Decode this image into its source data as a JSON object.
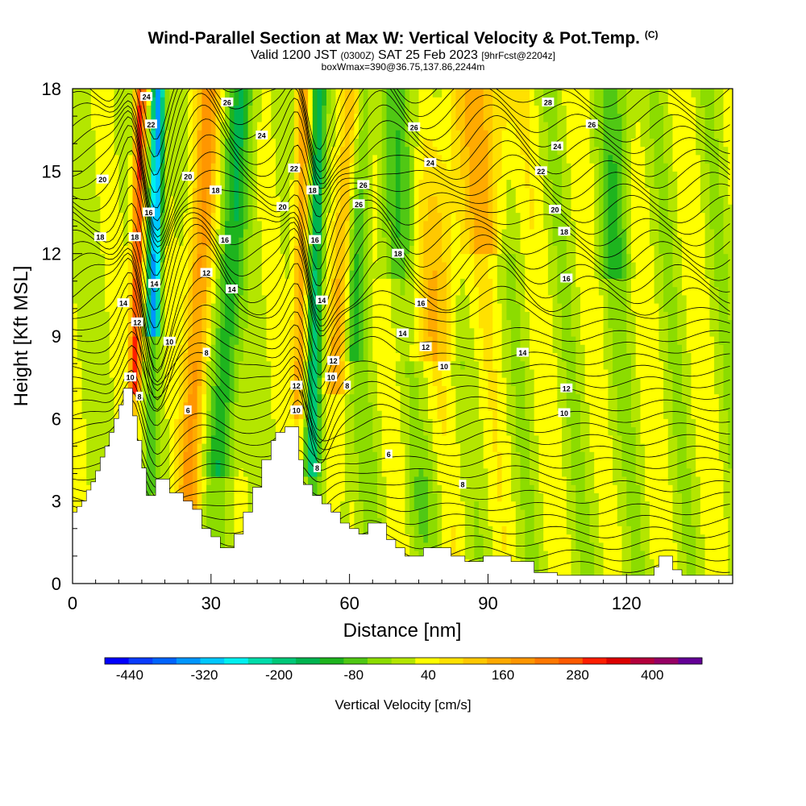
{
  "header": {
    "title": "Wind-Parallel Section at Max W: Vertical Velocity & Pot.Temp.",
    "copyright": "(C)",
    "valid_prefix": "Valid 1200 JST",
    "valid_zulu": "(0300Z)",
    "valid_date": "SAT 25 Feb 2023",
    "forecast_tag": "[9hrFcst@2204z]",
    "box_info": "boxWmax=390@36.75,137.86,2244m"
  },
  "chart_data": {
    "type": "heatmap",
    "xlabel": "Distance [nm]",
    "ylabel": "Height [Kft MSL]",
    "xlim": [
      0,
      143
    ],
    "ylim": [
      0,
      18
    ],
    "x_ticks": [
      0,
      30,
      60,
      90,
      120
    ],
    "y_ticks": [
      0,
      3,
      6,
      9,
      12,
      15,
      18
    ],
    "colorbar": {
      "label": "Vertical Velocity [cm/s]",
      "tick_labels": [
        "-440",
        "-320",
        "-200",
        "-80",
        "40",
        "160",
        "280",
        "400"
      ],
      "tick_values": [
        -440,
        -320,
        -200,
        -80,
        40,
        160,
        280,
        400
      ],
      "range": [
        -480,
        480
      ],
      "step": 40,
      "colors": [
        "#0000ff",
        "#0a3cff",
        "#0064ff",
        "#0096ff",
        "#00c8ff",
        "#00f0f0",
        "#00dcaa",
        "#00c878",
        "#00b450",
        "#1eb41e",
        "#50c814",
        "#8cdc00",
        "#b4e600",
        "#ffff00",
        "#ffe100",
        "#ffc800",
        "#ffaa00",
        "#ff9600",
        "#ff7800",
        "#ff5a00",
        "#ff1e00",
        "#dc0000",
        "#b4003c",
        "#960064",
        "#640096"
      ]
    },
    "terrain_profile": [
      [
        0,
        2.6
      ],
      [
        1,
        2.6
      ],
      [
        1,
        2.8
      ],
      [
        2,
        2.8
      ],
      [
        2,
        3
      ],
      [
        3,
        3
      ],
      [
        3,
        3.4
      ],
      [
        4,
        3.4
      ],
      [
        4,
        3.7
      ],
      [
        5,
        3.7
      ],
      [
        5,
        4.1
      ],
      [
        6,
        4.1
      ],
      [
        6,
        4.6
      ],
      [
        7,
        4.6
      ],
      [
        7,
        5
      ],
      [
        8,
        5
      ],
      [
        8,
        5.5
      ],
      [
        9,
        5.5
      ],
      [
        9,
        6
      ],
      [
        10,
        6
      ],
      [
        10,
        6.5
      ],
      [
        11,
        6.5
      ],
      [
        11,
        7.1
      ],
      [
        13,
        7.1
      ],
      [
        13,
        6.1
      ],
      [
        14,
        6.1
      ],
      [
        14,
        5.2
      ],
      [
        15,
        5.2
      ],
      [
        15,
        4.2
      ],
      [
        16,
        4.2
      ],
      [
        16,
        3.2
      ],
      [
        18,
        3.2
      ],
      [
        18,
        3.8
      ],
      [
        21,
        3.8
      ],
      [
        21,
        3.3
      ],
      [
        24,
        3.3
      ],
      [
        24,
        3
      ],
      [
        26,
        3
      ],
      [
        26,
        2.7
      ],
      [
        28,
        2.7
      ],
      [
        28,
        2
      ],
      [
        30,
        2
      ],
      [
        30,
        1.7
      ],
      [
        32,
        1.7
      ],
      [
        32,
        1.3
      ],
      [
        35,
        1.3
      ],
      [
        35,
        1.8
      ],
      [
        37,
        1.8
      ],
      [
        37,
        2.6
      ],
      [
        39,
        2.6
      ],
      [
        39,
        3.5
      ],
      [
        41,
        3.5
      ],
      [
        41,
        4.5
      ],
      [
        43,
        4.5
      ],
      [
        43,
        5.2
      ],
      [
        44,
        5.2
      ],
      [
        44,
        5.5
      ],
      [
        46,
        5.5
      ],
      [
        46,
        5.7
      ],
      [
        49,
        5.7
      ],
      [
        49,
        4.5
      ],
      [
        50,
        4.5
      ],
      [
        50,
        3.6
      ],
      [
        52,
        3.6
      ],
      [
        52,
        3.2
      ],
      [
        54,
        3.2
      ],
      [
        54,
        2.9
      ],
      [
        56,
        2.9
      ],
      [
        56,
        2.6
      ],
      [
        58,
        2.6
      ],
      [
        58,
        2.2
      ],
      [
        60,
        2.2
      ],
      [
        60,
        2
      ],
      [
        62,
        2
      ],
      [
        62,
        1.8
      ],
      [
        64,
        1.8
      ],
      [
        64,
        2.2
      ],
      [
        68,
        2.2
      ],
      [
        68,
        1.6
      ],
      [
        70,
        1.6
      ],
      [
        70,
        1.3
      ],
      [
        72,
        1.3
      ],
      [
        72,
        1
      ],
      [
        76,
        1
      ],
      [
        76,
        1.3
      ],
      [
        82,
        1.3
      ],
      [
        82,
        1
      ],
      [
        85,
        1
      ],
      [
        85,
        0.8
      ],
      [
        89,
        0.8
      ],
      [
        89,
        1
      ],
      [
        95,
        1
      ],
      [
        95,
        0.8
      ],
      [
        100,
        0.8
      ],
      [
        100,
        0.4
      ],
      [
        105,
        0.4
      ],
      [
        105,
        0.3
      ],
      [
        126,
        0.3
      ],
      [
        126,
        0.6
      ],
      [
        127,
        0.6
      ],
      [
        127,
        1
      ],
      [
        130,
        1
      ],
      [
        130,
        0.5
      ],
      [
        132,
        0.5
      ],
      [
        132,
        0.3
      ],
      [
        143,
        0.3
      ]
    ],
    "contour_labels": [
      {
        "text": "24",
        "x": 16,
        "y": 17.7
      },
      {
        "text": "22",
        "x": 17,
        "y": 16.7
      },
      {
        "text": "20",
        "x": 6.5,
        "y": 14.7
      },
      {
        "text": "18",
        "x": 6,
        "y": 12.6
      },
      {
        "text": "16",
        "x": 16.5,
        "y": 13.5
      },
      {
        "text": "18",
        "x": 13.5,
        "y": 12.6
      },
      {
        "text": "14",
        "x": 17.7,
        "y": 10.9
      },
      {
        "text": "14",
        "x": 11,
        "y": 10.2
      },
      {
        "text": "12",
        "x": 14,
        "y": 9.5
      },
      {
        "text": "10",
        "x": 21,
        "y": 8.8
      },
      {
        "text": "10",
        "x": 12.5,
        "y": 7.5
      },
      {
        "text": "8",
        "x": 14.5,
        "y": 6.8
      },
      {
        "text": "6",
        "x": 25,
        "y": 6.3
      },
      {
        "text": "8",
        "x": 29,
        "y": 8.4
      },
      {
        "text": "12",
        "x": 29,
        "y": 11.3
      },
      {
        "text": "20",
        "x": 25,
        "y": 14.8
      },
      {
        "text": "18",
        "x": 31,
        "y": 14.3
      },
      {
        "text": "16",
        "x": 33,
        "y": 12.5
      },
      {
        "text": "14",
        "x": 34.5,
        "y": 10.7
      },
      {
        "text": "26",
        "x": 33.5,
        "y": 17.5
      },
      {
        "text": "24",
        "x": 41,
        "y": 16.3
      },
      {
        "text": "22",
        "x": 48,
        "y": 15.1
      },
      {
        "text": "20",
        "x": 45.5,
        "y": 13.7
      },
      {
        "text": "18",
        "x": 52,
        "y": 14.3
      },
      {
        "text": "16",
        "x": 52.5,
        "y": 12.5
      },
      {
        "text": "14",
        "x": 54,
        "y": 10.3
      },
      {
        "text": "12",
        "x": 48.5,
        "y": 7.2
      },
      {
        "text": "10",
        "x": 48.5,
        "y": 6.3
      },
      {
        "text": "12",
        "x": 56.5,
        "y": 8.1
      },
      {
        "text": "10",
        "x": 56,
        "y": 7.5
      },
      {
        "text": "8",
        "x": 59.5,
        "y": 7.2
      },
      {
        "text": "8",
        "x": 53,
        "y": 4.2
      },
      {
        "text": "26",
        "x": 63,
        "y": 14.5
      },
      {
        "text": "26",
        "x": 62,
        "y": 13.8
      },
      {
        "text": "24",
        "x": 77.5,
        "y": 15.3
      },
      {
        "text": "26",
        "x": 74,
        "y": 16.6
      },
      {
        "text": "18",
        "x": 70.5,
        "y": 12
      },
      {
        "text": "16",
        "x": 75.5,
        "y": 10.2
      },
      {
        "text": "14",
        "x": 71.5,
        "y": 9.1
      },
      {
        "text": "12",
        "x": 76.5,
        "y": 8.6
      },
      {
        "text": "10",
        "x": 80.5,
        "y": 7.9
      },
      {
        "text": "6",
        "x": 68.5,
        "y": 4.7
      },
      {
        "text": "8",
        "x": 84.5,
        "y": 3.6
      },
      {
        "text": "28",
        "x": 103,
        "y": 17.5
      },
      {
        "text": "26",
        "x": 112.5,
        "y": 16.7
      },
      {
        "text": "24",
        "x": 105,
        "y": 15.9
      },
      {
        "text": "22",
        "x": 101.5,
        "y": 15
      },
      {
        "text": "20",
        "x": 104.5,
        "y": 13.6
      },
      {
        "text": "18",
        "x": 106.5,
        "y": 12.8
      },
      {
        "text": "16",
        "x": 107,
        "y": 11.1
      },
      {
        "text": "14",
        "x": 97.5,
        "y": 8.4
      },
      {
        "text": "12",
        "x": 107,
        "y": 7.1
      },
      {
        "text": "10",
        "x": 106.5,
        "y": 6.2
      }
    ]
  }
}
